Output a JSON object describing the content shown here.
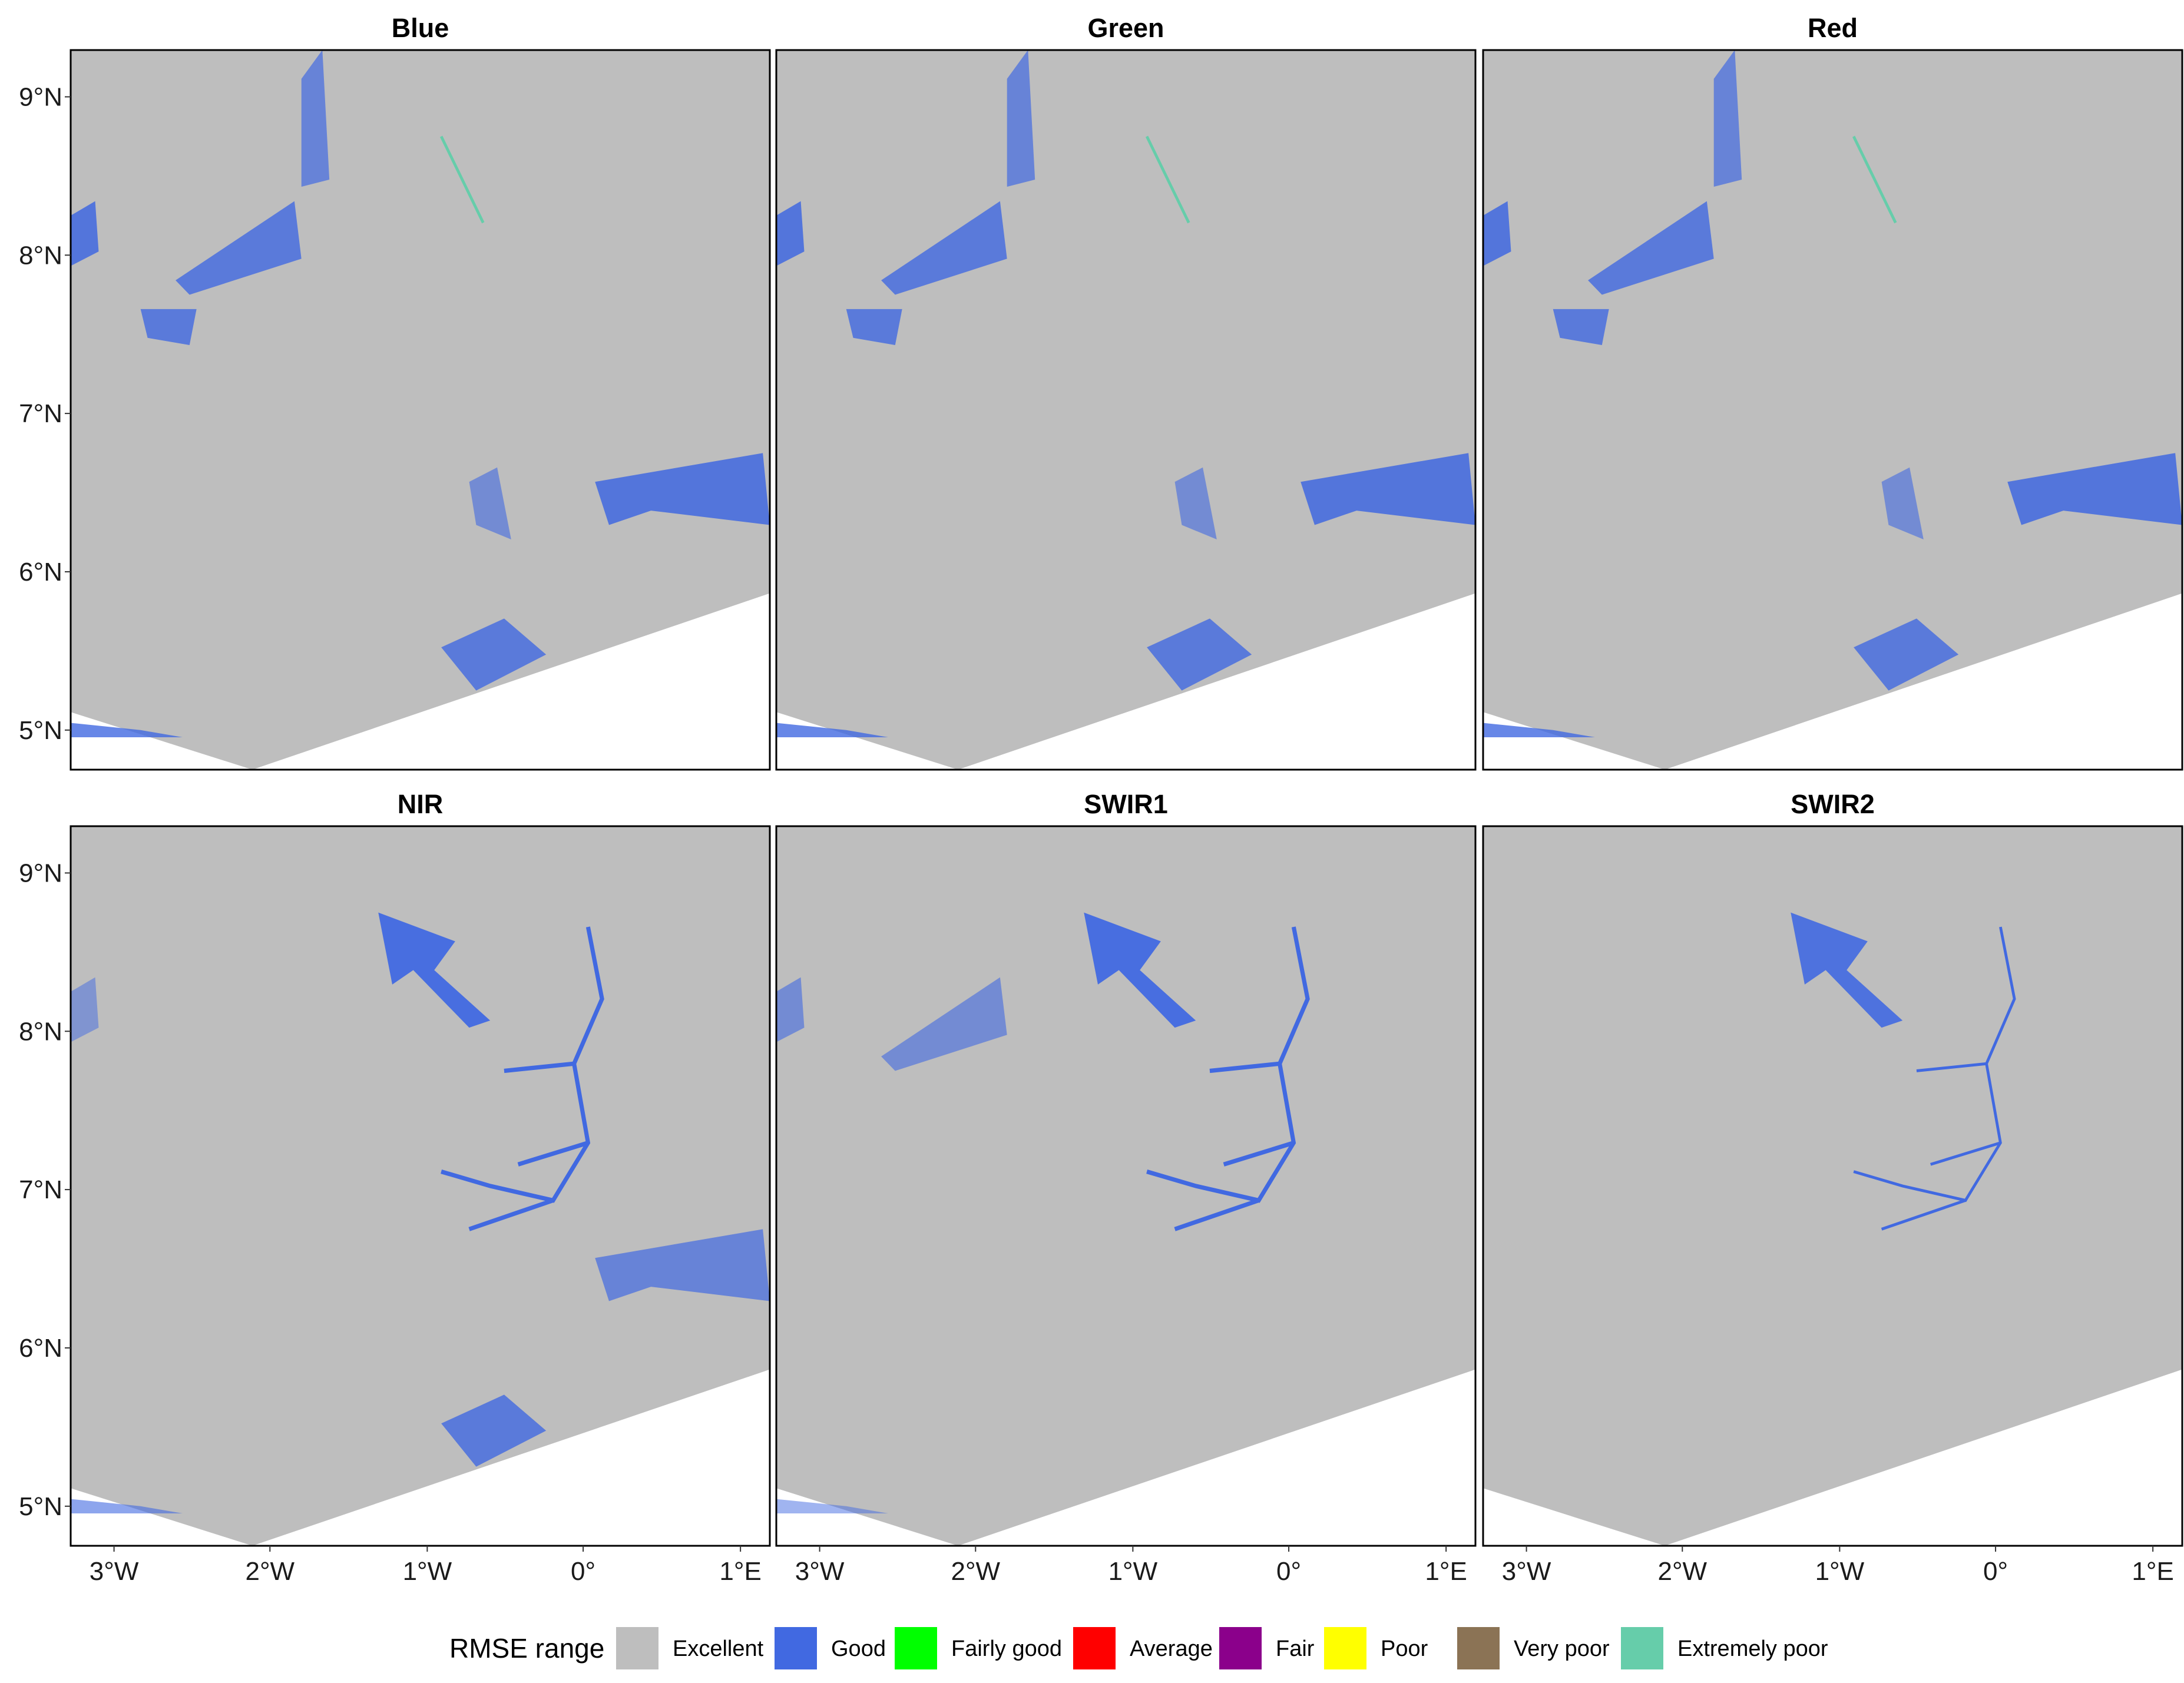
{
  "figure": {
    "panels": [
      {
        "title": "Blue",
        "pattern": "visible"
      },
      {
        "title": "Green",
        "pattern": "visible"
      },
      {
        "title": "Red",
        "pattern": "visible"
      },
      {
        "title": "NIR",
        "pattern": "nir"
      },
      {
        "title": "SWIR1",
        "pattern": "swir1"
      },
      {
        "title": "SWIR2",
        "pattern": "swir2"
      }
    ],
    "lat_ticks": [
      "9°N",
      "8°N",
      "7°N",
      "6°N",
      "5°N"
    ],
    "lon_ticks": [
      "3°W",
      "2°W",
      "1°W",
      "0°",
      "1°E"
    ],
    "background_color": "#bebebe"
  },
  "legend": {
    "title": "RMSE range",
    "items": [
      {
        "label": "Excellent",
        "color": "#bebebe"
      },
      {
        "label": "Good",
        "color": "#4169e1"
      },
      {
        "label": "Fairly good",
        "color": "#00ff00"
      },
      {
        "label": "Average",
        "color": "#ff0000"
      },
      {
        "label": "Fair",
        "color": "#8b008b"
      },
      {
        "label": "Poor",
        "color": "#ffff00"
      },
      {
        "label": "Very poor",
        "color": "#8b7355"
      },
      {
        "label": "Extremely poor",
        "color": "#66cdaa"
      }
    ]
  }
}
